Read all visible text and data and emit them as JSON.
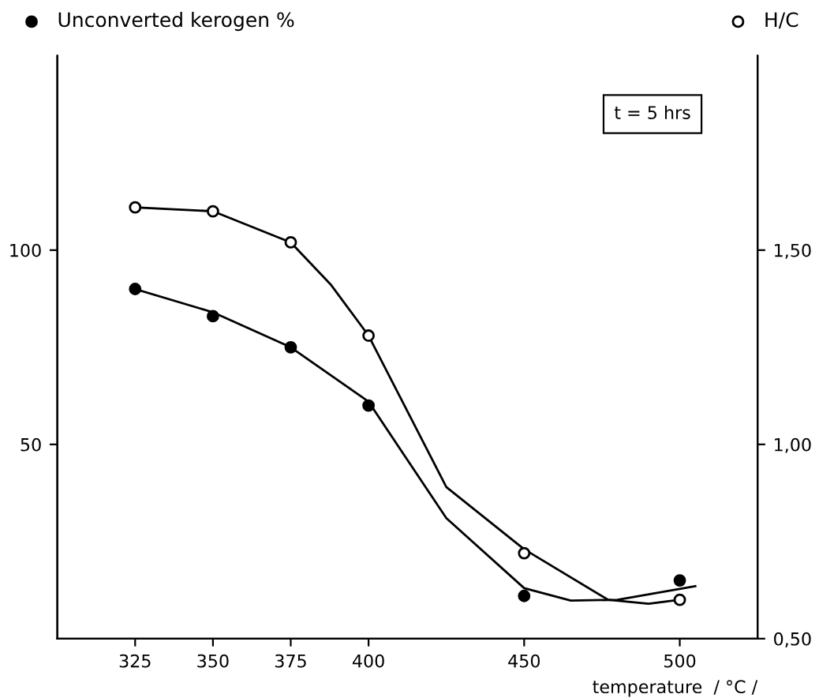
{
  "chart_data": {
    "type": "scatter",
    "legend": "top",
    "xlabel": "temperature  / °C /",
    "annotations": [
      "t = 5 hrs"
    ],
    "marker": "circle",
    "xlim": [
      300,
      525
    ],
    "xticks": [
      325,
      350,
      375,
      400,
      450,
      500
    ],
    "ylim": [
      0,
      150
    ],
    "yticks": [
      50,
      100
    ],
    "y2lim": [
      0.5,
      2.0
    ],
    "y2ticks": [
      {
        "value": 0.5,
        "label": "0,50"
      },
      {
        "value": 1.0,
        "label": "1,00"
      },
      {
        "value": 1.5,
        "label": "1,50"
      }
    ],
    "series": [
      {
        "name": "Unconverted kerogen %",
        "color": "#000000",
        "x": [
          325,
          350,
          375,
          400,
          450,
          500
        ],
        "values": [
          90,
          83,
          75,
          60,
          11,
          15
        ]
      },
      {
        "name": "H/C",
        "axis": "y2",
        "color": "#ffffff",
        "x": [
          325,
          350,
          375,
          400,
          450,
          500
        ],
        "values": [
          1.61,
          1.6,
          1.52,
          1.28,
          0.72,
          0.6
        ]
      },
      {
        "type": "line",
        "marker": "none",
        "color": "#000000",
        "x": [
          325,
          350,
          375,
          400,
          425,
          450,
          465,
          480,
          505
        ],
        "values": [
          90,
          84,
          75,
          61,
          31,
          13,
          9.8,
          10,
          13.5
        ]
      },
      {
        "type": "line",
        "marker": "none",
        "axis": "y2",
        "color": "#000000",
        "x": [
          325,
          350,
          375,
          388,
          400,
          425,
          450,
          477,
          490,
          500
        ],
        "values": [
          1.61,
          1.6,
          1.52,
          1.41,
          1.28,
          0.89,
          0.73,
          0.6,
          0.59,
          0.6
        ]
      }
    ]
  }
}
